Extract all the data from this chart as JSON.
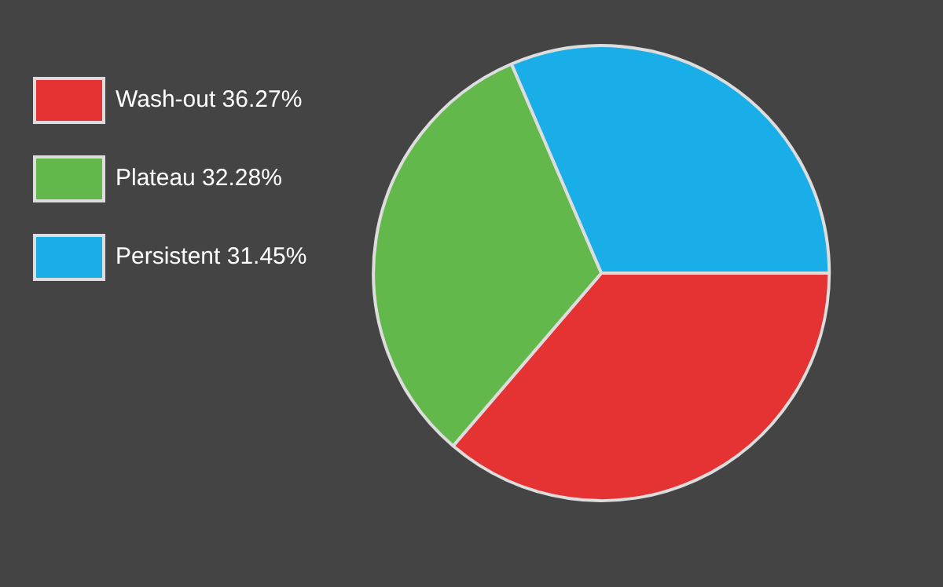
{
  "chart_data": {
    "type": "pie",
    "categories": [
      "Wash-out",
      "Plateau",
      "Persistent"
    ],
    "values": [
      36.27,
      32.28,
      31.45
    ],
    "value_labels": [
      "36.27%",
      "32.28%",
      "31.45%"
    ],
    "colors": [
      "#e53232",
      "#62b84a",
      "#1aaee8"
    ],
    "legend": "left"
  }
}
